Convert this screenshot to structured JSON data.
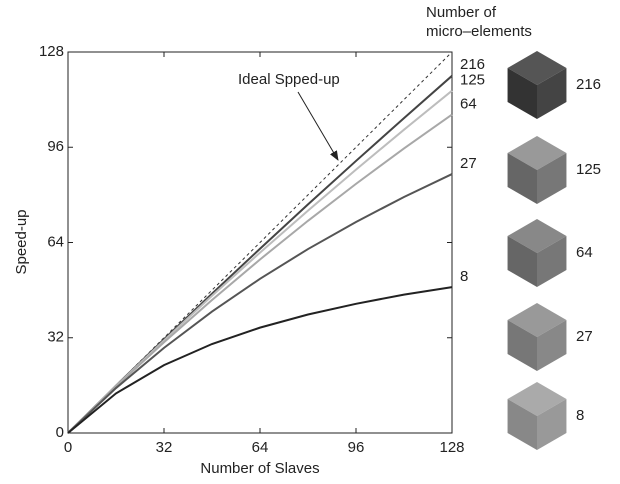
{
  "chart_data": {
    "type": "line",
    "x_label": "Number of Slaves",
    "y_label": "Speed-up",
    "annotation": "Ideal Spped-up",
    "legend_title": [
      "Number of",
      "micro–elements"
    ],
    "x": [
      0,
      16,
      32,
      48,
      64,
      80,
      96,
      112,
      128
    ],
    "series": [
      {
        "color": "#333333",
        "dashed": true,
        "values": [
          0,
          16,
          32,
          48,
          64,
          80,
          96,
          112,
          128
        ]
      },
      {
        "name": "216",
        "color": "#444444",
        "values": [
          0,
          15.9,
          31.5,
          46.8,
          61.9,
          76.8,
          91.4,
          105.8,
          120
        ]
      },
      {
        "name": "125",
        "color": "#bdbdbd",
        "values": [
          0,
          15.8,
          31.1,
          46.1,
          60.6,
          74.7,
          88.5,
          101.9,
          115
        ]
      },
      {
        "name": "64",
        "color": "#a8a8a8",
        "values": [
          0,
          15.6,
          30.5,
          44.7,
          58.3,
          71.3,
          83.7,
          95.6,
          107
        ]
      },
      {
        "name": "27",
        "color": "#555555",
        "values": [
          0,
          15.1,
          28.6,
          40.8,
          51.8,
          61.8,
          70.9,
          79.3,
          87
        ]
      },
      {
        "name": "8",
        "color": "#222222",
        "values": [
          0,
          13.3,
          22.8,
          29.9,
          35.4,
          39.8,
          43.4,
          46.5,
          49
        ]
      }
    ],
    "xlim": [
      0,
      128
    ],
    "ylim": [
      0,
      128
    ],
    "xticks": [
      0,
      32,
      64,
      96,
      128
    ],
    "yticks": [
      0,
      32,
      64,
      96,
      128
    ]
  }
}
